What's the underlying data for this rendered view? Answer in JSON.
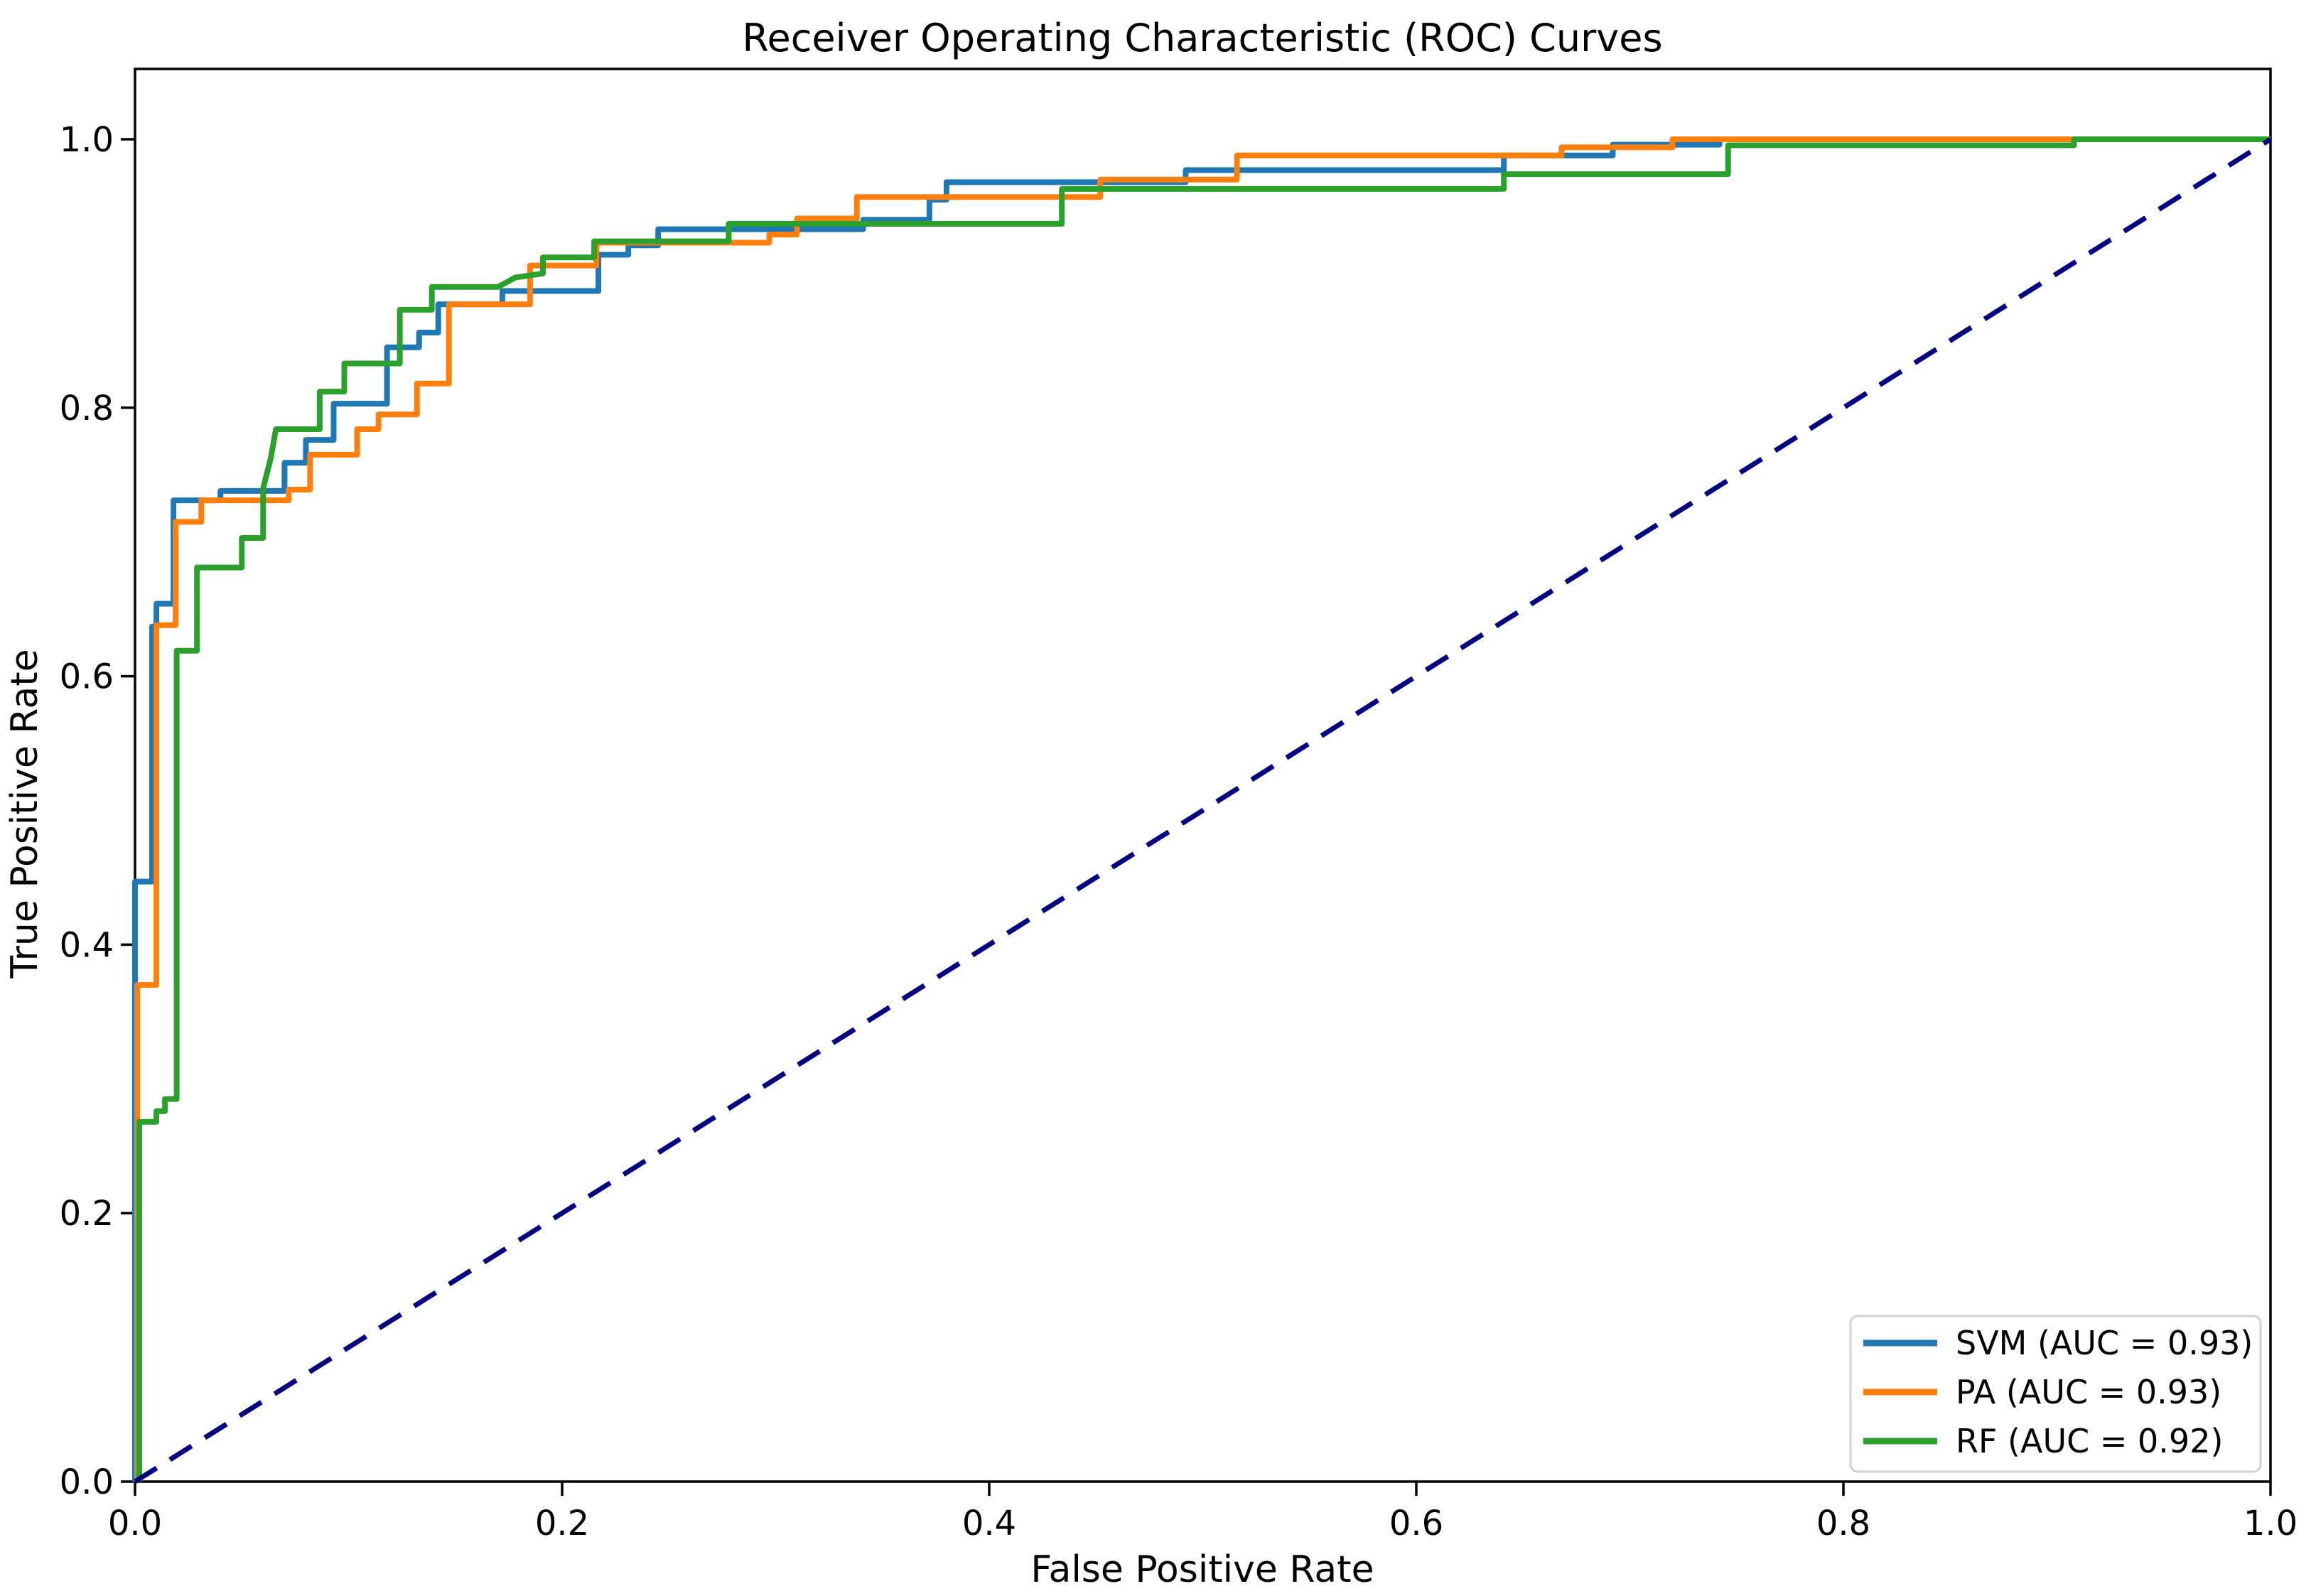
{
  "title": "Receiver Operating Characteristic (ROC) Curves",
  "axes": {
    "xlabel": "False Positive Rate",
    "ylabel": "True Positive Rate",
    "x_tick_labels": [
      "0.0",
      "0.2",
      "0.4",
      "0.6",
      "0.8",
      "1.0"
    ],
    "y_tick_labels": [
      "0.0",
      "0.2",
      "0.4",
      "0.6",
      "0.8",
      "1.0"
    ]
  },
  "legend": {
    "position": "lower right",
    "entries": [
      {
        "label": "SVM (AUC = 0.93)",
        "color": "#1f77b4",
        "style": "solid"
      },
      {
        "label": "PA (AUC = 0.93)",
        "color": "#ff7f0e",
        "style": "solid"
      },
      {
        "label": "RF (AUC = 0.92)",
        "color": "#2ca02c",
        "style": "solid"
      }
    ]
  },
  "chart_data": {
    "type": "line",
    "subtype": "roc-step-curves",
    "title": "Receiver Operating Characteristic (ROC) Curves",
    "xlabel": "False Positive Rate",
    "ylabel": "True Positive Rate",
    "xlim": [
      0.0,
      1.0
    ],
    "ylim": [
      0.0,
      1.056
    ],
    "x_ticks": [
      0.0,
      0.2,
      0.4,
      0.6,
      0.8,
      1.0
    ],
    "y_ticks": [
      0.0,
      0.2,
      0.4,
      0.6,
      0.8,
      1.0
    ],
    "grid": false,
    "legend_position": "lower right",
    "series": [
      {
        "id": "svm",
        "name": "SVM (AUC = 0.93)",
        "model": "SVM",
        "auc": 0.93,
        "color": "#1f77b4",
        "style": "solid",
        "points": [
          [
            0.0,
            0.0
          ],
          [
            0.0,
            0.447
          ],
          [
            0.008,
            0.447
          ],
          [
            0.008,
            0.637
          ],
          [
            0.01,
            0.637
          ],
          [
            0.01,
            0.654
          ],
          [
            0.018,
            0.654
          ],
          [
            0.018,
            0.731
          ],
          [
            0.04,
            0.731
          ],
          [
            0.04,
            0.738
          ],
          [
            0.07,
            0.738
          ],
          [
            0.07,
            0.759
          ],
          [
            0.08,
            0.759
          ],
          [
            0.08,
            0.776
          ],
          [
            0.093,
            0.776
          ],
          [
            0.093,
            0.803
          ],
          [
            0.118,
            0.803
          ],
          [
            0.118,
            0.845
          ],
          [
            0.133,
            0.845
          ],
          [
            0.133,
            0.856
          ],
          [
            0.142,
            0.856
          ],
          [
            0.142,
            0.877
          ],
          [
            0.172,
            0.877
          ],
          [
            0.172,
            0.887
          ],
          [
            0.217,
            0.887
          ],
          [
            0.217,
            0.914
          ],
          [
            0.231,
            0.914
          ],
          [
            0.231,
            0.921
          ],
          [
            0.245,
            0.921
          ],
          [
            0.245,
            0.933
          ],
          [
            0.341,
            0.933
          ],
          [
            0.341,
            0.94
          ],
          [
            0.372,
            0.94
          ],
          [
            0.372,
            0.955
          ],
          [
            0.38,
            0.955
          ],
          [
            0.38,
            0.968
          ],
          [
            0.492,
            0.968
          ],
          [
            0.492,
            0.977
          ],
          [
            0.641,
            0.977
          ],
          [
            0.641,
            0.988
          ],
          [
            0.692,
            0.988
          ],
          [
            0.692,
            0.996
          ],
          [
            0.742,
            0.996
          ],
          [
            0.742,
            1.0
          ],
          [
            1.0,
            1.0
          ]
        ]
      },
      {
        "id": "pa",
        "name": "PA (AUC = 0.93)",
        "model": "PA",
        "auc": 0.93,
        "color": "#ff7f0e",
        "style": "solid",
        "points": [
          [
            0.001,
            0.0
          ],
          [
            0.001,
            0.37
          ],
          [
            0.01,
            0.37
          ],
          [
            0.01,
            0.638
          ],
          [
            0.019,
            0.638
          ],
          [
            0.019,
            0.715
          ],
          [
            0.031,
            0.715
          ],
          [
            0.031,
            0.731
          ],
          [
            0.072,
            0.731
          ],
          [
            0.072,
            0.739
          ],
          [
            0.082,
            0.739
          ],
          [
            0.082,
            0.765
          ],
          [
            0.104,
            0.765
          ],
          [
            0.104,
            0.784
          ],
          [
            0.114,
            0.784
          ],
          [
            0.114,
            0.795
          ],
          [
            0.132,
            0.795
          ],
          [
            0.132,
            0.818
          ],
          [
            0.147,
            0.818
          ],
          [
            0.147,
            0.877
          ],
          [
            0.185,
            0.877
          ],
          [
            0.185,
            0.906
          ],
          [
            0.216,
            0.906
          ],
          [
            0.216,
            0.923
          ],
          [
            0.297,
            0.923
          ],
          [
            0.297,
            0.929
          ],
          [
            0.31,
            0.929
          ],
          [
            0.31,
            0.941
          ],
          [
            0.338,
            0.941
          ],
          [
            0.338,
            0.957
          ],
          [
            0.452,
            0.957
          ],
          [
            0.452,
            0.97
          ],
          [
            0.516,
            0.97
          ],
          [
            0.516,
            0.988
          ],
          [
            0.668,
            0.988
          ],
          [
            0.668,
            0.994
          ],
          [
            0.72,
            0.994
          ],
          [
            0.72,
            1.0
          ],
          [
            1.0,
            1.0
          ]
        ]
      },
      {
        "id": "rf",
        "name": "RF (AUC = 0.92)",
        "model": "RF",
        "auc": 0.92,
        "color": "#2ca02c",
        "style": "solid",
        "points": [
          [
            0.002,
            0.0
          ],
          [
            0.002,
            0.268
          ],
          [
            0.01,
            0.268
          ],
          [
            0.01,
            0.276
          ],
          [
            0.014,
            0.276
          ],
          [
            0.014,
            0.285
          ],
          [
            0.0195,
            0.285
          ],
          [
            0.0195,
            0.619
          ],
          [
            0.029,
            0.619
          ],
          [
            0.029,
            0.681
          ],
          [
            0.05,
            0.681
          ],
          [
            0.05,
            0.703
          ],
          [
            0.06,
            0.703
          ],
          [
            0.06,
            0.74
          ],
          [
            0.0635,
            0.762
          ],
          [
            0.066,
            0.784
          ],
          [
            0.0865,
            0.784
          ],
          [
            0.0865,
            0.812
          ],
          [
            0.098,
            0.812
          ],
          [
            0.098,
            0.833
          ],
          [
            0.124,
            0.833
          ],
          [
            0.124,
            0.873
          ],
          [
            0.139,
            0.873
          ],
          [
            0.139,
            0.89
          ],
          [
            0.17,
            0.89
          ],
          [
            0.178,
            0.897
          ],
          [
            0.191,
            0.9
          ],
          [
            0.191,
            0.912
          ],
          [
            0.215,
            0.912
          ],
          [
            0.215,
            0.924
          ],
          [
            0.278,
            0.924
          ],
          [
            0.278,
            0.937
          ],
          [
            0.434,
            0.937
          ],
          [
            0.434,
            0.963
          ],
          [
            0.641,
            0.963
          ],
          [
            0.641,
            0.974
          ],
          [
            0.746,
            0.974
          ],
          [
            0.746,
            0.9955
          ],
          [
            0.908,
            0.9955
          ],
          [
            0.908,
            1.0
          ],
          [
            1.0,
            1.0
          ]
        ]
      }
    ],
    "reference_line": {
      "name": "chance-diagonal",
      "color": "#000080",
      "style": "dashed",
      "points": [
        [
          0.0,
          0.0
        ],
        [
          1.0,
          1.0
        ]
      ]
    }
  }
}
